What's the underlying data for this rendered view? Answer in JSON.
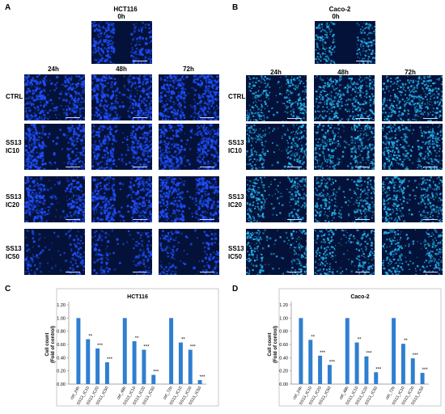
{
  "panels": {
    "a": "A",
    "b": "B",
    "c": "C",
    "d": "D"
  },
  "left_block": {
    "title": "HCT116",
    "zero_label": "0h",
    "times": [
      "24h",
      "48h",
      "72h"
    ],
    "rows": [
      {
        "line1": "CTRL",
        "line2": ""
      },
      {
        "line1": "SS13",
        "line2": "IC10"
      },
      {
        "line1": "SS13",
        "line2": "IC20"
      },
      {
        "line1": "SS13",
        "line2": "IC50"
      }
    ]
  },
  "right_block": {
    "title": "Caco-2",
    "zero_label": "0h",
    "times": [
      "24h",
      "48h",
      "72h"
    ],
    "rows": [
      {
        "line1": "CTRL",
        "line2": ""
      },
      {
        "line1": "SS13",
        "line2": "IC10"
      },
      {
        "line1": "SS13",
        "line2": "IC20"
      },
      {
        "line1": "SS13",
        "line2": "IC50"
      }
    ]
  },
  "colors": {
    "bar": "#2f7fd0",
    "cell_hct": "#1f4fff",
    "cell_caco": "#25b6f0",
    "background_image": "#04123a"
  },
  "chart_data": [
    {
      "type": "bar",
      "title": "HCT116",
      "ylabel": "Cell count\n(Fold of control)",
      "ylim": [
        0,
        1.2
      ],
      "yticks": [
        "0.00",
        "0.20",
        "0.40",
        "0.60",
        "0.80",
        "1.00",
        "1.20"
      ],
      "categories": [
        "ctrl_24h",
        "SS13_IC10",
        "SS13_IC20",
        "SS13_IC50",
        "ctrl_48h",
        "SS13_IC10",
        "SS13_IC20",
        "SS13_IC50",
        "ctrl_72h",
        "SS13_IC10",
        "SS13_IC20",
        "SS13_IC50"
      ],
      "values": [
        1.0,
        0.68,
        0.54,
        0.33,
        1.0,
        0.65,
        0.52,
        0.14,
        1.0,
        0.63,
        0.52,
        0.06
      ],
      "annotations": [
        "",
        "**",
        "***",
        "***",
        "",
        "**",
        "***",
        "***",
        "",
        "**",
        "***",
        "***"
      ]
    },
    {
      "type": "bar",
      "title": "Caco-2",
      "ylabel": "Cell count\n(Fold of control)",
      "ylim": [
        0,
        1.2
      ],
      "yticks": [
        "0.00",
        "0.20",
        "0.40",
        "0.60",
        "0.80",
        "1.00",
        "1.20"
      ],
      "categories": [
        "ctrl_24h",
        "SS13_IC10",
        "SS13_IC20",
        "SS13_IC50",
        "ctrl_48h",
        "SS13_IC10",
        "SS13_IC20",
        "SS13_IC50",
        "ctrl_72h",
        "SS13_IC10",
        "SS13_IC20",
        "SS13_IC50"
      ],
      "values": [
        1.0,
        0.67,
        0.43,
        0.29,
        1.0,
        0.63,
        0.42,
        0.18,
        1.0,
        0.61,
        0.39,
        0.17
      ],
      "annotations": [
        "",
        "**",
        "***",
        "***",
        "",
        "**",
        "***",
        "***",
        "",
        "**",
        "***",
        "***"
      ]
    }
  ]
}
